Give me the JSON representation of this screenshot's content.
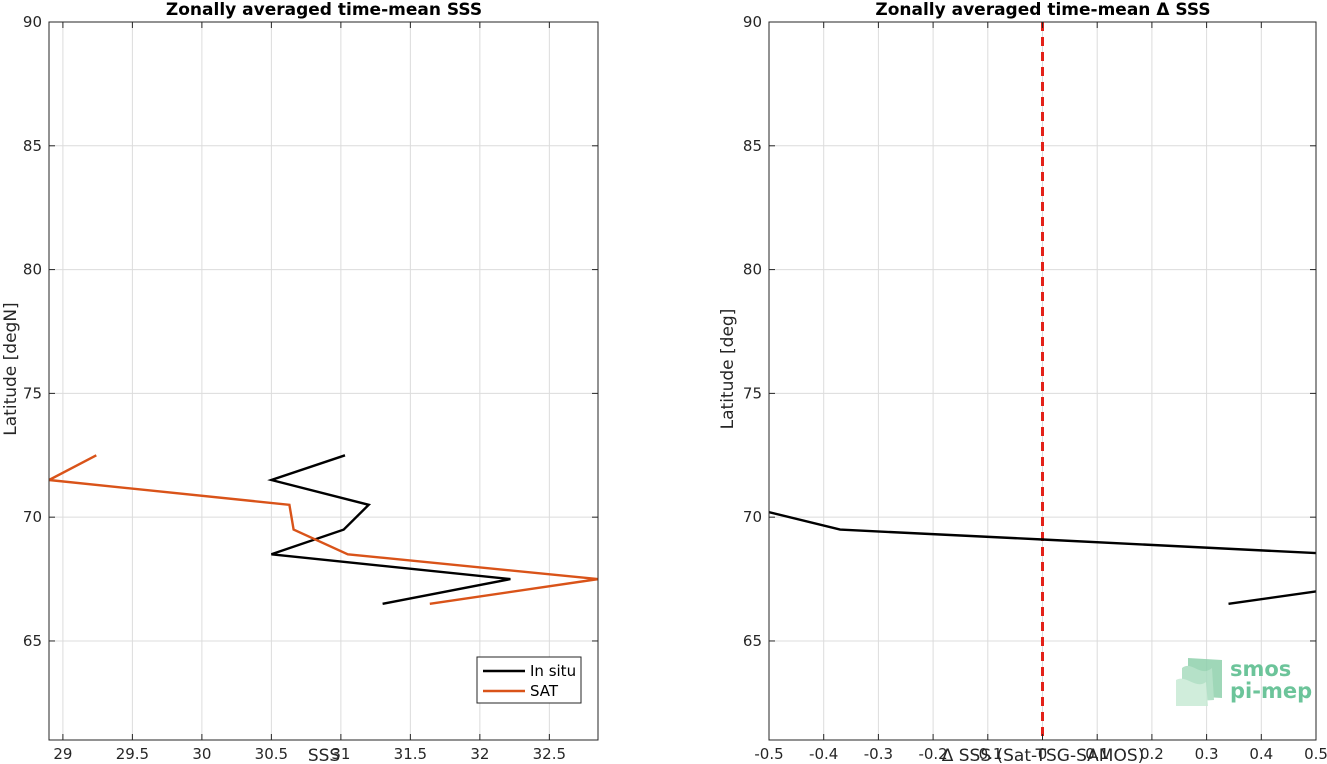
{
  "chart_data": [
    {
      "type": "line",
      "title": "Zonally averaged time-mean SSS",
      "xlabel": "SSS",
      "ylabel": "Latitude [degN]",
      "xlim": [
        28.9,
        32.85
      ],
      "ylim": [
        61,
        90
      ],
      "xticks": [
        29,
        29.5,
        30,
        30.5,
        31,
        31.5,
        32,
        32.5
      ],
      "yticks": [
        65,
        70,
        75,
        80,
        85,
        90
      ],
      "grid": true,
      "legend": "bottom-right",
      "series": [
        {
          "name": "In situ",
          "color": "#000000",
          "x": [
            31.3,
            32.22,
            30.5,
            31.02,
            31.2,
            30.5,
            31.03
          ],
          "y": [
            66.5,
            67.5,
            68.5,
            69.5,
            70.5,
            71.5,
            72.5
          ]
        },
        {
          "name": "SAT",
          "color": "#d95319",
          "x": [
            31.64,
            32.85,
            31.05,
            30.66,
            30.63,
            28.9,
            29.24
          ],
          "y": [
            66.5,
            67.5,
            68.5,
            69.5,
            70.5,
            71.5,
            72.5
          ]
        }
      ]
    },
    {
      "type": "line",
      "title": "Zonally averaged time-mean Δ SSS",
      "xlabel": "Δ SSS (Sat-TSG-SAMOS)",
      "ylabel": "Latitude [deg]",
      "xlim": [
        -0.5,
        0.5
      ],
      "ylim": [
        61,
        90
      ],
      "xticks": [
        -0.5,
        -0.4,
        -0.3,
        -0.2,
        -0.1,
        0,
        0.1,
        0.2,
        0.3,
        0.4,
        0.5
      ],
      "yticks": [
        65,
        70,
        75,
        80,
        85,
        90
      ],
      "grid": true,
      "reference_line": {
        "x": 0,
        "color": "#e32119",
        "style": "dashed"
      },
      "series": [
        {
          "color": "#000000",
          "x": [
            0.34,
            0.5
          ],
          "y": [
            66.5,
            67.0
          ]
        },
        {
          "color": "#000000",
          "x": [
            0.5,
            0.0,
            -0.37,
            -0.5
          ],
          "y": [
            68.55,
            69.1,
            69.5,
            70.2
          ]
        }
      ]
    }
  ],
  "logo": {
    "line1": "smos",
    "line2": "pi-mep",
    "icon": "smos-wave-icon"
  }
}
